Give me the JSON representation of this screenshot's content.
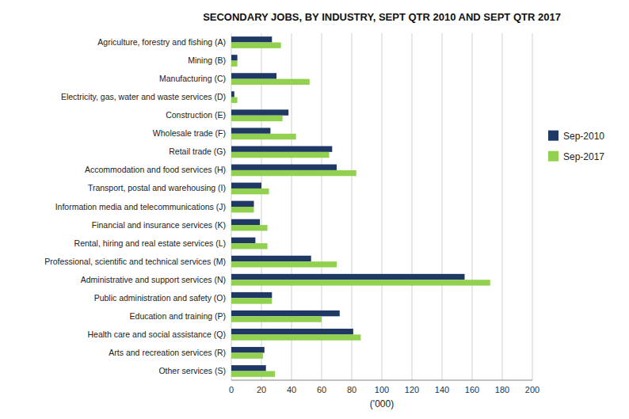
{
  "chart_data": {
    "type": "bar",
    "orientation": "horizontal",
    "title": "SECONDARY JOBS, BY INDUSTRY, SEPT QTR 2010 AND SEPT QTR 2017",
    "x_label": "('000)",
    "categories": [
      "Agriculture, forestry and fishing (A)",
      "Mining (B)",
      "Manufacturing (C)",
      "Electricity, gas, water and waste services (D)",
      "Construction (E)",
      "Wholesale trade (F)",
      "Retail trade (G)",
      "Accommodation and food services (H)",
      "Transport, postal and warehousing (I)",
      "Information media and telecommunications (J)",
      "Financial and insurance services (K)",
      "Rental, hiring and real estate services (L)",
      "Professional, scientific and technical services (M)",
      "Administrative and support services (N)",
      "Public administration and safety (O)",
      "Education and training (P)",
      "Health care and social assistance (Q)",
      "Arts and recreation services (R)",
      "Other services (S)"
    ],
    "series": [
      {
        "name": "Sep-2010",
        "color": "#1f3864",
        "values": [
          27,
          4,
          30,
          2,
          38,
          26,
          67,
          70,
          20,
          15,
          19,
          16,
          53,
          155,
          27,
          72,
          81,
          22,
          23
        ]
      },
      {
        "name": "Sep-2017",
        "color": "#92d050",
        "values": [
          33,
          4,
          52,
          4,
          34,
          43,
          65,
          83,
          25,
          15,
          24,
          24,
          70,
          172,
          27,
          60,
          86,
          21,
          29
        ]
      }
    ],
    "xlim": [
      0,
      200
    ],
    "xticks": [
      0,
      20,
      40,
      60,
      80,
      100,
      120,
      140,
      160,
      180,
      200
    ],
    "grid": true,
    "legend": "right"
  }
}
